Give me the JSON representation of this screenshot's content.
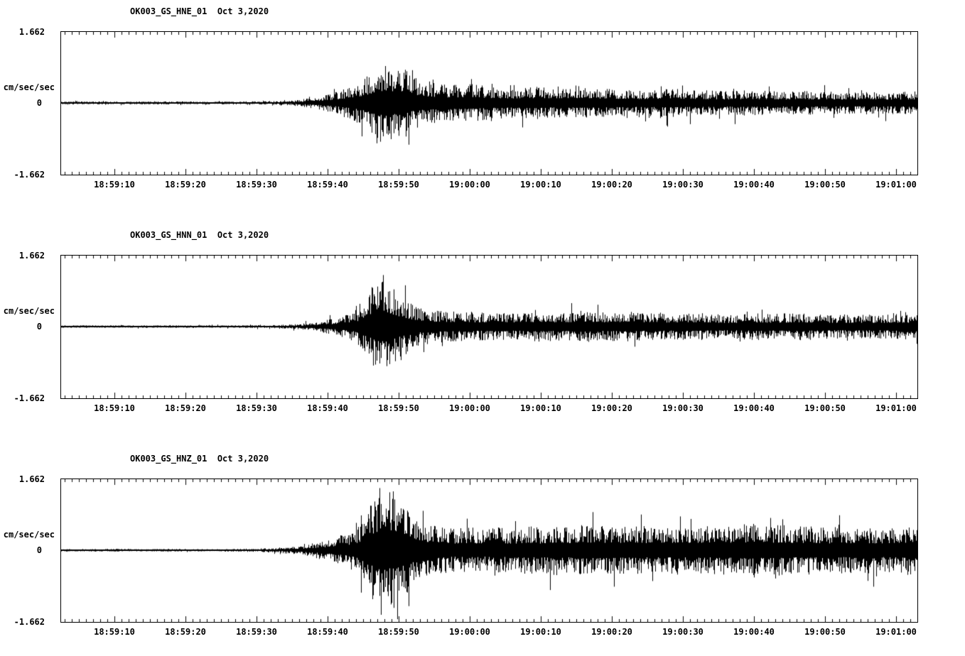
{
  "colors": {
    "background": "#ffffff",
    "trace": "#000000",
    "axis": "#000000"
  },
  "y_axis": {
    "max": 1.662,
    "min": -1.662,
    "max_label": "1.662",
    "zero_label": "0",
    "min_label": "-1.662",
    "unit": "cm/sec/sec"
  },
  "x_axis": {
    "start_s": 2.5,
    "end_s": 123,
    "minor_tick_s": 1,
    "major_tick_s": 10,
    "tick_times_s": [
      10,
      20,
      30,
      40,
      50,
      60,
      70,
      80,
      90,
      100,
      110,
      120
    ],
    "tick_labels": [
      "18:59:10",
      "18:59:20",
      "18:59:30",
      "18:59:40",
      "18:59:50",
      "19:00:00",
      "19:00:10",
      "19:00:20",
      "19:00:30",
      "19:00:40",
      "19:00:50",
      "19:01:00"
    ]
  },
  "chart_data": [
    {
      "type": "line",
      "title": "OK003_GS_HNE_01  Oct 3,2020",
      "ylabel": "cm/sec/sec",
      "xlabel": "",
      "ylim": [
        -1.662,
        1.662
      ],
      "x_tick_labels": [
        "18:59:10",
        "18:59:20",
        "18:59:30",
        "18:59:40",
        "18:59:50",
        "19:00:00",
        "19:00:10",
        "19:00:20",
        "19:00:30",
        "19:00:40",
        "19:00:50",
        "19:01:00"
      ],
      "description": "Seismic acceleration trace; envelope points are [seconds after 18:59:00, amplitude in cm/sec/sec]",
      "seed": 101,
      "envelope": [
        [
          2.5,
          0.035
        ],
        [
          25,
          0.035
        ],
        [
          32,
          0.04
        ],
        [
          35,
          0.06
        ],
        [
          37,
          0.1
        ],
        [
          39,
          0.16
        ],
        [
          41,
          0.25
        ],
        [
          43,
          0.38
        ],
        [
          44.5,
          0.5
        ],
        [
          46,
          0.68
        ],
        [
          47.5,
          0.92
        ],
        [
          49,
          0.85
        ],
        [
          50.5,
          0.9
        ],
        [
          52,
          0.62
        ],
        [
          54,
          0.5
        ],
        [
          57,
          0.42
        ],
        [
          60,
          0.45
        ],
        [
          63,
          0.38
        ],
        [
          66,
          0.35
        ],
        [
          70,
          0.38
        ],
        [
          73,
          0.33
        ],
        [
          76,
          0.36
        ],
        [
          80,
          0.33
        ],
        [
          84,
          0.3
        ],
        [
          88,
          0.34
        ],
        [
          92,
          0.3
        ],
        [
          96,
          0.28
        ],
        [
          100,
          0.3
        ],
        [
          104,
          0.27
        ],
        [
          108,
          0.28
        ],
        [
          112,
          0.26
        ],
        [
          116,
          0.27
        ],
        [
          120,
          0.26
        ],
        [
          123,
          0.27
        ]
      ]
    },
    {
      "type": "line",
      "title": "OK003_GS_HNN_01  Oct 3,2020",
      "ylabel": "cm/sec/sec",
      "xlabel": "",
      "ylim": [
        -1.662,
        1.662
      ],
      "x_tick_labels": [
        "18:59:10",
        "18:59:20",
        "18:59:30",
        "18:59:40",
        "18:59:50",
        "19:00:00",
        "19:00:10",
        "19:00:20",
        "19:00:30",
        "19:00:40",
        "19:00:50",
        "19:01:00"
      ],
      "description": "Seismic acceleration trace; envelope points are [seconds after 18:59:00, amplitude in cm/sec/sec]",
      "seed": 202,
      "envelope": [
        [
          2.5,
          0.03
        ],
        [
          25,
          0.03
        ],
        [
          32,
          0.035
        ],
        [
          35,
          0.05
        ],
        [
          37,
          0.08
        ],
        [
          39,
          0.13
        ],
        [
          41,
          0.2
        ],
        [
          43,
          0.3
        ],
        [
          44.5,
          0.45
        ],
        [
          45.5,
          0.7
        ],
        [
          46.5,
          1.0
        ],
        [
          47.5,
          1.15
        ],
        [
          48.5,
          1.0
        ],
        [
          50,
          0.8
        ],
        [
          51.5,
          0.6
        ],
        [
          53,
          0.45
        ],
        [
          55,
          0.38
        ],
        [
          58,
          0.35
        ],
        [
          61,
          0.32
        ],
        [
          64,
          0.35
        ],
        [
          67,
          0.3
        ],
        [
          70,
          0.36
        ],
        [
          73,
          0.32
        ],
        [
          76,
          0.38
        ],
        [
          79,
          0.33
        ],
        [
          82,
          0.36
        ],
        [
          85,
          0.32
        ],
        [
          88,
          0.3
        ],
        [
          91,
          0.33
        ],
        [
          94,
          0.3
        ],
        [
          97,
          0.28
        ],
        [
          100,
          0.32
        ],
        [
          103,
          0.3
        ],
        [
          106,
          0.33
        ],
        [
          109,
          0.3
        ],
        [
          112,
          0.28
        ],
        [
          115,
          0.3
        ],
        [
          118,
          0.28
        ],
        [
          121,
          0.3
        ],
        [
          123,
          0.29
        ]
      ]
    },
    {
      "type": "line",
      "title": "OK003_GS_HNZ_01  Oct 3,2020",
      "ylabel": "cm/sec/sec",
      "xlabel": "",
      "ylim": [
        -1.662,
        1.662
      ],
      "x_tick_labels": [
        "18:59:10",
        "18:59:20",
        "18:59:30",
        "18:59:40",
        "18:59:50",
        "19:00:00",
        "19:00:10",
        "19:00:20",
        "19:00:30",
        "19:00:40",
        "19:00:50",
        "19:01:00"
      ],
      "description": "Seismic acceleration trace; envelope points are [seconds after 18:59:00, amplitude in cm/sec/sec]",
      "seed": 303,
      "envelope": [
        [
          2.5,
          0.03
        ],
        [
          25,
          0.03
        ],
        [
          30,
          0.04
        ],
        [
          33,
          0.06
        ],
        [
          35,
          0.09
        ],
        [
          37,
          0.13
        ],
        [
          39,
          0.2
        ],
        [
          41,
          0.3
        ],
        [
          43,
          0.42
        ],
        [
          44.5,
          0.6
        ],
        [
          45.5,
          0.9
        ],
        [
          46.5,
          1.3
        ],
        [
          47.5,
          1.5
        ],
        [
          48.5,
          1.35
        ],
        [
          49.5,
          1.45
        ],
        [
          51,
          1.1
        ],
        [
          52.5,
          0.85
        ],
        [
          54,
          0.65
        ],
        [
          56,
          0.55
        ],
        [
          58,
          0.5
        ],
        [
          60,
          0.55
        ],
        [
          62,
          0.48
        ],
        [
          64,
          0.55
        ],
        [
          66,
          0.5
        ],
        [
          68,
          0.58
        ],
        [
          70,
          0.52
        ],
        [
          72,
          0.6
        ],
        [
          74,
          0.55
        ],
        [
          76,
          0.62
        ],
        [
          78,
          0.55
        ],
        [
          80,
          0.6
        ],
        [
          82,
          0.55
        ],
        [
          84,
          0.58
        ],
        [
          86,
          0.52
        ],
        [
          88,
          0.56
        ],
        [
          90,
          0.52
        ],
        [
          92,
          0.58
        ],
        [
          94,
          0.55
        ],
        [
          96,
          0.6
        ],
        [
          98,
          0.55
        ],
        [
          100,
          0.62
        ],
        [
          102,
          0.58
        ],
        [
          104,
          0.6
        ],
        [
          106,
          0.55
        ],
        [
          108,
          0.58
        ],
        [
          110,
          0.52
        ],
        [
          112,
          0.55
        ],
        [
          114,
          0.5
        ],
        [
          116,
          0.55
        ],
        [
          118,
          0.5
        ],
        [
          120,
          0.55
        ],
        [
          122,
          0.6
        ],
        [
          123,
          0.55
        ]
      ]
    }
  ]
}
